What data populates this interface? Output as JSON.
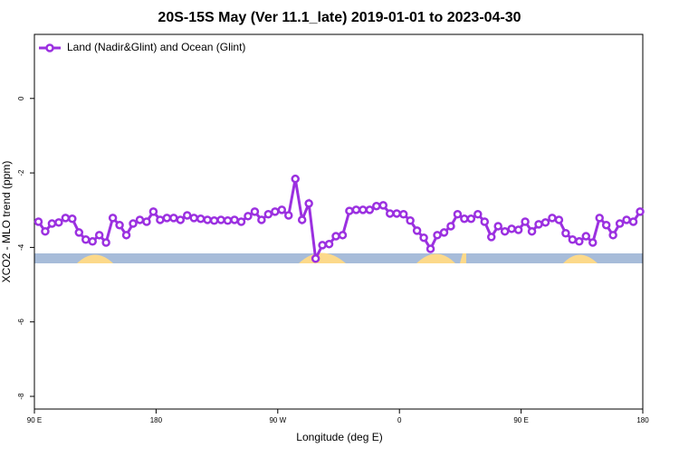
{
  "chart_data": {
    "type": "line",
    "title": "20S-15S May (Ver 11.1_late)   2019-01-01 to 2023-04-30",
    "x_label": "Longitude (deg E)",
    "y_label": "XCO2 - MLO trend (ppm)",
    "x": [
      93,
      98,
      103,
      108,
      113,
      118,
      123,
      128,
      133,
      138,
      143,
      148,
      153,
      158,
      163,
      168,
      173,
      178,
      183,
      188,
      193,
      198,
      203,
      208,
      213,
      218,
      223,
      228,
      233,
      238,
      243,
      248,
      253,
      258,
      263,
      268,
      273,
      278,
      283,
      288,
      293,
      298,
      303,
      308,
      313,
      318,
      323,
      328,
      333,
      338,
      343,
      348,
      353,
      358,
      363,
      368,
      373,
      378,
      383,
      388,
      393,
      398,
      403,
      408,
      413,
      418,
      423,
      428,
      433,
      438,
      443,
      448,
      453,
      458,
      463,
      468,
      473,
      478,
      483,
      488,
      493,
      498,
      503,
      508,
      513,
      518,
      523,
      528,
      533,
      538
    ],
    "series": [
      {
        "name": "Land (Nadir&Glint) and Ocean (Glint)",
        "color": "#9b30e0",
        "values": [
          -3.31,
          -3.57,
          -3.36,
          -3.33,
          -3.21,
          -3.23,
          -3.6,
          -3.79,
          -3.84,
          -3.67,
          -3.87,
          -3.21,
          -3.4,
          -3.67,
          -3.36,
          -3.26,
          -3.31,
          -3.04,
          -3.26,
          -3.21,
          -3.21,
          -3.26,
          -3.14,
          -3.21,
          -3.23,
          -3.26,
          -3.28,
          -3.26,
          -3.28,
          -3.26,
          -3.31,
          -3.16,
          -3.04,
          -3.26,
          -3.11,
          -3.04,
          -2.99,
          -3.14,
          -2.16,
          -3.26,
          -2.82,
          -4.3,
          -3.94,
          -3.91,
          -3.7,
          -3.67,
          -3.02,
          -2.99,
          -2.99,
          -2.99,
          -2.89,
          -2.87,
          -3.09,
          -3.09,
          -3.11,
          -3.28,
          -3.55,
          -3.74,
          -4.04,
          -3.67,
          -3.6,
          -3.43,
          -3.11,
          -3.23,
          -3.23,
          -3.11,
          -3.31,
          -3.72,
          -3.43,
          -3.57,
          -3.5,
          -3.53,
          -3.31,
          -3.57,
          -3.38,
          -3.33,
          -3.21,
          -3.26,
          -3.62,
          -3.79,
          -3.84,
          -3.7,
          -3.87,
          -3.21,
          -3.4,
          -3.67,
          -3.36,
          -3.26,
          -3.31,
          -3.04
        ]
      }
    ],
    "xlim": [
      90,
      540
    ],
    "xticks": [
      {
        "value": 90,
        "label": "90 E"
      },
      180,
      {
        "value": 270,
        "label": "90 W"
      },
      {
        "value": 360,
        "label": "0"
      },
      {
        "value": 450,
        "label": "90 E"
      },
      {
        "value": 540,
        "label": "180"
      }
    ],
    "ylim": [
      -8.34,
      1.72
    ],
    "yticks": [
      0,
      -2,
      -4,
      -6,
      -8
    ],
    "legend": "upper left"
  }
}
